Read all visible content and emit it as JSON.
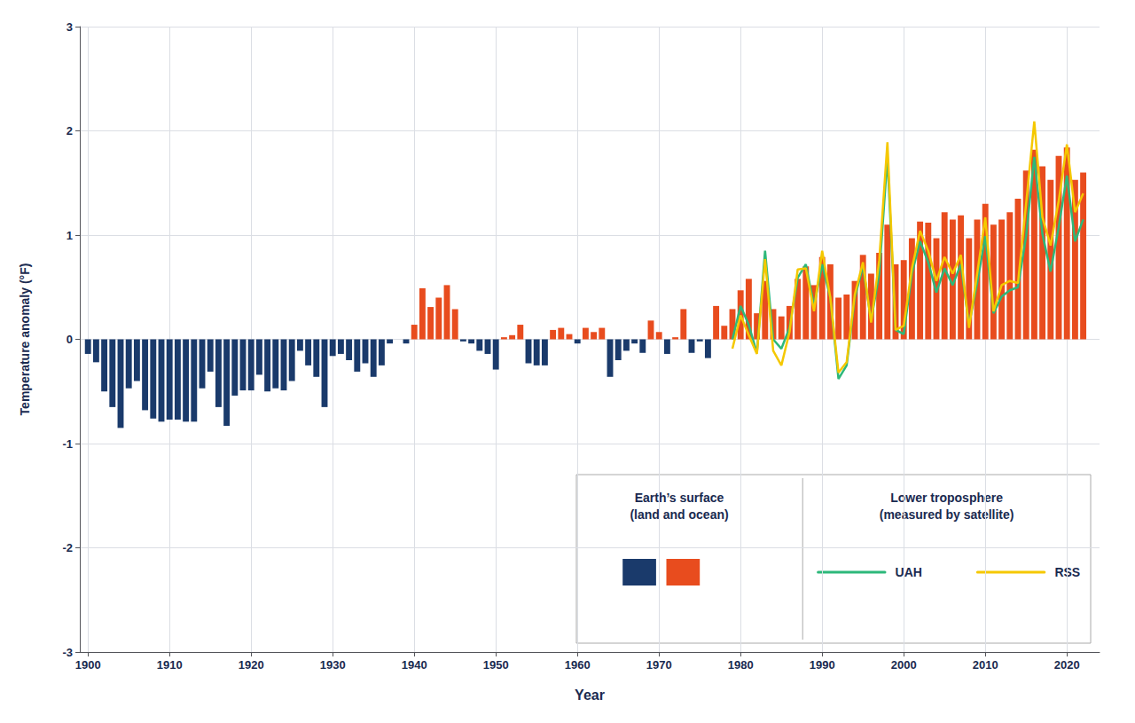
{
  "chart_data": {
    "type": "bar",
    "xlabel": "Year",
    "ylabel": "Temperature anomaly (°F)",
    "xlim": [
      1899,
      2024
    ],
    "ylim": [
      -3,
      3
    ],
    "xticks": [
      1900,
      1910,
      1920,
      1930,
      1940,
      1950,
      1960,
      1970,
      1980,
      1990,
      2000,
      2010,
      2020
    ],
    "yticks": [
      -3,
      -2,
      -1,
      0,
      1,
      2,
      3
    ],
    "grid": true,
    "legend": "lower right",
    "annotations": [
      "Lower troposphere\n(measured by satellite)"
    ],
    "series": [
      {
        "name": "Earth’s surface\n(land and ocean)",
        "type": "bar",
        "x": [
          1900,
          1901,
          1902,
          1903,
          1904,
          1905,
          1906,
          1907,
          1908,
          1909,
          1910,
          1911,
          1912,
          1913,
          1914,
          1915,
          1916,
          1917,
          1918,
          1919,
          1920,
          1921,
          1922,
          1923,
          1924,
          1925,
          1926,
          1927,
          1928,
          1929,
          1930,
          1931,
          1932,
          1933,
          1934,
          1935,
          1936,
          1937,
          1938,
          1939,
          1940,
          1941,
          1942,
          1943,
          1944,
          1945,
          1946,
          1947,
          1948,
          1949,
          1950,
          1951,
          1952,
          1953,
          1954,
          1955,
          1956,
          1957,
          1958,
          1959,
          1960,
          1961,
          1962,
          1963,
          1964,
          1965,
          1966,
          1967,
          1968,
          1969,
          1970,
          1971,
          1972,
          1973,
          1974,
          1975,
          1976,
          1977,
          1978,
          1979,
          1980,
          1981,
          1982,
          1983,
          1984,
          1985,
          1986,
          1987,
          1988,
          1989,
          1990,
          1991,
          1992,
          1993,
          1994,
          1995,
          1996,
          1997,
          1998,
          1999,
          2000,
          2001,
          2002,
          2003,
          2004,
          2005,
          2006,
          2007,
          2008,
          2009,
          2010,
          2011,
          2012,
          2013,
          2014,
          2015,
          2016,
          2017,
          2018,
          2019,
          2020,
          2021,
          2022
        ],
        "values": [
          -0.14,
          -0.22,
          -0.5,
          -0.65,
          -0.85,
          -0.47,
          -0.4,
          -0.68,
          -0.76,
          -0.79,
          -0.77,
          -0.77,
          -0.79,
          -0.79,
          -0.47,
          -0.31,
          -0.65,
          -0.83,
          -0.54,
          -0.49,
          -0.49,
          -0.34,
          -0.5,
          -0.47,
          -0.49,
          -0.4,
          -0.11,
          -0.25,
          -0.36,
          -0.65,
          -0.16,
          -0.14,
          -0.2,
          -0.31,
          -0.23,
          -0.36,
          -0.25,
          -0.04,
          -0.0,
          -0.04,
          0.14,
          0.49,
          0.31,
          0.4,
          0.52,
          0.29,
          -0.02,
          -0.04,
          -0.11,
          -0.14,
          -0.29,
          0.02,
          0.04,
          0.14,
          -0.23,
          -0.25,
          -0.25,
          0.09,
          0.11,
          0.05,
          -0.04,
          0.11,
          0.07,
          0.11,
          -0.36,
          -0.2,
          -0.11,
          -0.04,
          -0.13,
          0.18,
          0.07,
          -0.14,
          0.02,
          0.29,
          -0.13,
          -0.02,
          -0.18,
          0.32,
          0.13,
          0.29,
          0.47,
          0.58,
          0.25,
          0.56,
          0.29,
          0.22,
          0.32,
          0.58,
          0.7,
          0.52,
          0.79,
          0.72,
          0.4,
          0.43,
          0.56,
          0.81,
          0.63,
          0.83,
          1.1,
          0.72,
          0.76,
          0.97,
          1.13,
          1.12,
          0.97,
          1.22,
          1.15,
          1.19,
          0.97,
          1.15,
          1.3,
          1.1,
          1.15,
          1.22,
          1.35,
          1.62,
          1.82,
          1.66,
          1.53,
          1.76,
          1.84,
          1.53,
          1.6
        ],
        "colors": [
          "#1a3a6b",
          "#1a3a6b",
          "#1a3a6b",
          "#1a3a6b",
          "#1a3a6b",
          "#1a3a6b",
          "#1a3a6b",
          "#1a3a6b",
          "#1a3a6b",
          "#1a3a6b",
          "#1a3a6b",
          "#1a3a6b",
          "#1a3a6b",
          "#1a3a6b",
          "#1a3a6b",
          "#1a3a6b",
          "#1a3a6b",
          "#1a3a6b",
          "#1a3a6b",
          "#1a3a6b",
          "#1a3a6b",
          "#1a3a6b",
          "#1a3a6b",
          "#1a3a6b",
          "#1a3a6b",
          "#1a3a6b",
          "#1a3a6b",
          "#1a3a6b",
          "#1a3a6b",
          "#1a3a6b",
          "#1a3a6b",
          "#1a3a6b",
          "#1a3a6b",
          "#1a3a6b",
          "#1a3a6b",
          "#1a3a6b",
          "#1a3a6b",
          "#1a3a6b",
          "#e84c1e",
          "#1a3a6b",
          "#e84c1e",
          "#e84c1e",
          "#e84c1e",
          "#e84c1e",
          "#e84c1e",
          "#e84c1e",
          "#1a3a6b",
          "#1a3a6b",
          "#1a3a6b",
          "#1a3a6b",
          "#1a3a6b",
          "#e84c1e",
          "#e84c1e",
          "#e84c1e",
          "#1a3a6b",
          "#1a3a6b",
          "#1a3a6b",
          "#e84c1e",
          "#e84c1e",
          "#e84c1e",
          "#1a3a6b",
          "#e84c1e",
          "#e84c1e",
          "#e84c1e",
          "#1a3a6b",
          "#1a3a6b",
          "#1a3a6b",
          "#1a3a6b",
          "#1a3a6b",
          "#e84c1e",
          "#e84c1e",
          "#1a3a6b",
          "#e84c1e",
          "#e84c1e",
          "#1a3a6b",
          "#1a3a6b",
          "#1a3a6b",
          "#e84c1e",
          "#e84c1e",
          "#e84c1e",
          "#e84c1e",
          "#e84c1e",
          "#e84c1e",
          "#e84c1e",
          "#e84c1e",
          "#e84c1e",
          "#e84c1e",
          "#e84c1e",
          "#e84c1e",
          "#e84c1e",
          "#e84c1e",
          "#e84c1e",
          "#e84c1e",
          "#e84c1e",
          "#e84c1e",
          "#e84c1e",
          "#e84c1e",
          "#e84c1e",
          "#e84c1e",
          "#e84c1e",
          "#e84c1e",
          "#e84c1e",
          "#e84c1e",
          "#e84c1e",
          "#e84c1e",
          "#e84c1e",
          "#e84c1e",
          "#e84c1e",
          "#e84c1e",
          "#e84c1e",
          "#e84c1e",
          "#e84c1e",
          "#e84c1e",
          "#e84c1e",
          "#e84c1e",
          "#e84c1e",
          "#e84c1e",
          "#e84c1e",
          "#e84c1e",
          "#e84c1e",
          "#e84c1e",
          "#e84c1e",
          "#e84c1e"
        ]
      },
      {
        "name": "UAH",
        "type": "line",
        "color": "#2db87a",
        "x": [
          1979,
          1980,
          1981,
          1982,
          1983,
          1984,
          1985,
          1986,
          1987,
          1988,
          1989,
          1990,
          1991,
          1992,
          1993,
          1994,
          1995,
          1996,
          1997,
          1998,
          1999,
          2000,
          2001,
          2002,
          2003,
          2004,
          2005,
          2006,
          2007,
          2008,
          2009,
          2010,
          2011,
          2012,
          2013,
          2014,
          2015,
          2016,
          2017,
          2018,
          2019,
          2020,
          2021,
          2022
        ],
        "values": [
          0.0,
          0.32,
          0.14,
          -0.13,
          0.85,
          0.0,
          -0.09,
          0.11,
          0.59,
          0.72,
          0.32,
          0.72,
          0.4,
          -0.38,
          -0.25,
          0.4,
          0.7,
          0.18,
          0.63,
          1.75,
          0.09,
          0.05,
          0.63,
          0.94,
          0.74,
          0.45,
          0.68,
          0.52,
          0.72,
          0.14,
          0.54,
          0.99,
          0.25,
          0.41,
          0.47,
          0.5,
          0.99,
          1.75,
          1.01,
          0.65,
          1.08,
          1.57,
          0.94,
          1.15
        ]
      },
      {
        "name": "RSS",
        "type": "line",
        "color": "#f5c800",
        "x": [
          1979,
          1980,
          1981,
          1982,
          1983,
          1984,
          1985,
          1986,
          1987,
          1988,
          1989,
          1990,
          1991,
          1992,
          1993,
          1994,
          1995,
          1996,
          1997,
          1998,
          1999,
          2000,
          2001,
          2002,
          2003,
          2004,
          2005,
          2006,
          2007,
          2008,
          2009,
          2010,
          2011,
          2012,
          2013,
          2014,
          2015,
          2016,
          2017,
          2018,
          2019,
          2020,
          2021,
          2022
        ],
        "values": [
          -0.09,
          0.23,
          0.04,
          -0.14,
          0.77,
          -0.11,
          -0.25,
          0.07,
          0.67,
          0.68,
          0.27,
          0.85,
          0.4,
          -0.32,
          -0.22,
          0.43,
          0.74,
          0.16,
          0.76,
          1.89,
          0.09,
          0.13,
          0.68,
          1.04,
          0.85,
          0.56,
          0.79,
          0.63,
          0.81,
          0.11,
          0.63,
          1.17,
          0.27,
          0.52,
          0.56,
          0.54,
          1.3,
          2.09,
          1.17,
          0.9,
          1.33,
          1.87,
          1.22,
          1.4
        ]
      }
    ]
  }
}
